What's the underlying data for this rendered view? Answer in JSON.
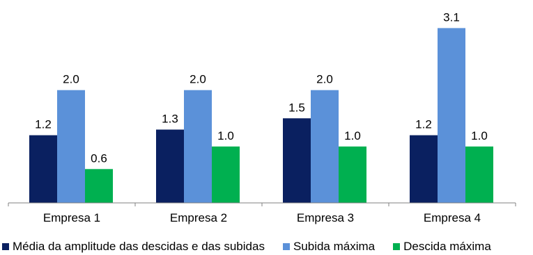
{
  "chart_data": {
    "type": "bar",
    "title": "",
    "xlabel": "",
    "ylabel": "",
    "categories": [
      "Empresa 1",
      "Empresa 2",
      "Empresa 3",
      "Empresa 4"
    ],
    "series": [
      {
        "name": "Média da amplitude das descidas e das subidas",
        "color": "#0a2060",
        "values": [
          1.2,
          1.3,
          1.5,
          1.2
        ],
        "labels": [
          "1.2",
          "1.3",
          "1.5",
          "1.2"
        ]
      },
      {
        "name": "Subida máxima",
        "color": "#5b91d9",
        "values": [
          2.0,
          2.0,
          2.0,
          3.1
        ],
        "labels": [
          "2.0",
          "2.0",
          "2.0",
          "3.1"
        ]
      },
      {
        "name": "Descida máxima",
        "color": "#00b050",
        "values": [
          0.6,
          1.0,
          1.0,
          1.0
        ],
        "labels": [
          "0.6",
          "1.0",
          "1.0",
          "1.0"
        ]
      }
    ],
    "ylim": [
      0,
      3.45
    ],
    "grid": false,
    "legend_position": "bottom"
  }
}
